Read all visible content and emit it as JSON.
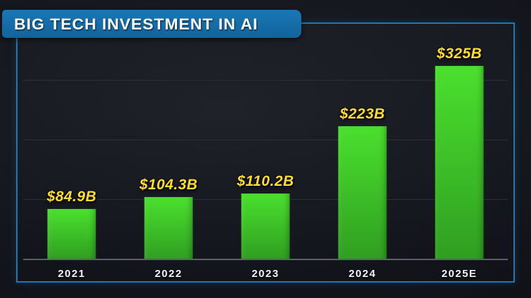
{
  "title": "BIG TECH INVESTMENT IN AI",
  "colors": {
    "banner": "#12639c",
    "banner_top": "#1a77b4",
    "frame_border": "#1e78b5",
    "bar_top": "#4be02e",
    "bar_bottom": "#2f9e21",
    "value_label": "#ffdc2e",
    "year_label": "#f1f3f6",
    "axis": "#5c6169",
    "gridline": "#2b2f38",
    "background": "#15171e"
  },
  "chart_data": {
    "type": "bar",
    "title": "BIG TECH INVESTMENT IN AI",
    "categories": [
      "2021",
      "2022",
      "2023",
      "2024",
      "2025E"
    ],
    "values": [
      84.9,
      104.3,
      110.2,
      223,
      325
    ],
    "value_labels": [
      "$84.9B",
      "$104.3B",
      "$110.2B",
      "$223B",
      "$325B"
    ],
    "xlabel": "",
    "ylabel": "",
    "ylim": [
      0,
      395
    ],
    "gridline_values": [
      100,
      200,
      300
    ],
    "grid": true,
    "legend": false
  }
}
